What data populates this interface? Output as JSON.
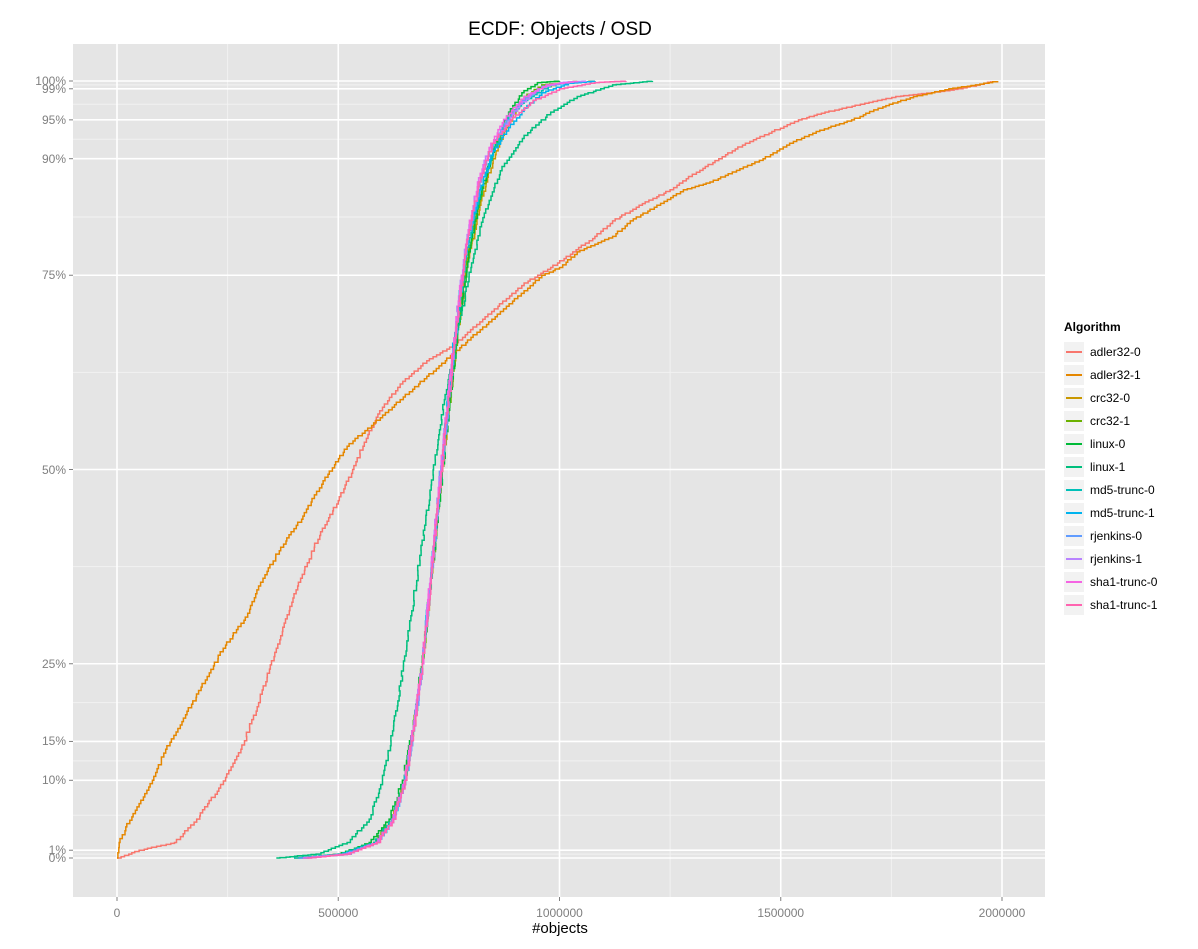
{
  "chart_data": {
    "type": "line",
    "subtype": "ecdf-step",
    "title": "ECDF: Objects / OSD",
    "xlabel": "#objects",
    "ylabel": "",
    "xlim": [
      -100000,
      2100000
    ],
    "ylim": [
      -0.05,
      1.05
    ],
    "x_ticks": [
      0,
      500000,
      1000000,
      1500000,
      2000000
    ],
    "x_tick_labels": [
      "0",
      "500000",
      "1000000",
      "1500000",
      "2000000"
    ],
    "y_ticks": [
      0,
      0.01,
      0.1,
      0.15,
      0.25,
      0.5,
      0.75,
      0.9,
      0.95,
      0.99,
      1.0
    ],
    "y_tick_labels": [
      "0%",
      "1%",
      "10%",
      "15%",
      "25%",
      "50%",
      "75%",
      "90%",
      "95%",
      "99%",
      "100%"
    ],
    "grid": true,
    "legend_title": "Algorithm",
    "legend_position": "right",
    "series": [
      {
        "name": "adler32-0",
        "color": "#F8766D",
        "points": [
          [
            0,
            0
          ],
          [
            50000,
            0.01
          ],
          [
            130000,
            0.02
          ],
          [
            180000,
            0.05
          ],
          [
            230000,
            0.09
          ],
          [
            280000,
            0.14
          ],
          [
            320000,
            0.2
          ],
          [
            360000,
            0.27
          ],
          [
            400000,
            0.34
          ],
          [
            430000,
            0.38
          ],
          [
            460000,
            0.42
          ],
          [
            500000,
            0.46
          ],
          [
            540000,
            0.51
          ],
          [
            570000,
            0.55
          ],
          [
            600000,
            0.58
          ],
          [
            640000,
            0.61
          ],
          [
            700000,
            0.64
          ],
          [
            760000,
            0.66
          ],
          [
            820000,
            0.69
          ],
          [
            880000,
            0.72
          ],
          [
            920000,
            0.74
          ],
          [
            980000,
            0.76
          ],
          [
            1030000,
            0.78
          ],
          [
            1080000,
            0.8
          ],
          [
            1120000,
            0.82
          ],
          [
            1180000,
            0.84
          ],
          [
            1250000,
            0.86
          ],
          [
            1300000,
            0.88
          ],
          [
            1360000,
            0.9
          ],
          [
            1420000,
            0.92
          ],
          [
            1480000,
            0.935
          ],
          [
            1540000,
            0.95
          ],
          [
            1600000,
            0.96
          ],
          [
            1680000,
            0.97
          ],
          [
            1760000,
            0.98
          ],
          [
            1840000,
            0.985
          ],
          [
            1900000,
            0.99
          ],
          [
            1960000,
            0.997
          ],
          [
            1975000,
            1.0
          ]
        ]
      },
      {
        "name": "adler32-1",
        "color": "#E58700",
        "points": [
          [
            0,
            0
          ],
          [
            5000,
            0.02
          ],
          [
            20000,
            0.04
          ],
          [
            50000,
            0.07
          ],
          [
            80000,
            0.1
          ],
          [
            110000,
            0.14
          ],
          [
            150000,
            0.18
          ],
          [
            190000,
            0.22
          ],
          [
            240000,
            0.27
          ],
          [
            290000,
            0.31
          ],
          [
            330000,
            0.36
          ],
          [
            370000,
            0.4
          ],
          [
            420000,
            0.44
          ],
          [
            470000,
            0.49
          ],
          [
            520000,
            0.53
          ],
          [
            580000,
            0.56
          ],
          [
            640000,
            0.59
          ],
          [
            700000,
            0.62
          ],
          [
            760000,
            0.65
          ],
          [
            800000,
            0.67
          ],
          [
            840000,
            0.69
          ],
          [
            880000,
            0.71
          ],
          [
            920000,
            0.73
          ],
          [
            960000,
            0.75
          ],
          [
            1000000,
            0.76
          ],
          [
            1040000,
            0.78
          ],
          [
            1080000,
            0.79
          ],
          [
            1120000,
            0.8
          ],
          [
            1160000,
            0.82
          ],
          [
            1220000,
            0.84
          ],
          [
            1280000,
            0.86
          ],
          [
            1340000,
            0.87
          ],
          [
            1400000,
            0.885
          ],
          [
            1460000,
            0.9
          ],
          [
            1520000,
            0.92
          ],
          [
            1580000,
            0.935
          ],
          [
            1660000,
            0.95
          ],
          [
            1720000,
            0.965
          ],
          [
            1800000,
            0.98
          ],
          [
            1880000,
            0.99
          ],
          [
            1940000,
            0.995
          ],
          [
            1990000,
            1.0
          ]
        ]
      },
      {
        "name": "crc32-0",
        "color": "#C99800",
        "points": [
          [
            400000,
            0
          ],
          [
            500000,
            0.005
          ],
          [
            580000,
            0.02
          ],
          [
            620000,
            0.05
          ],
          [
            650000,
            0.1
          ],
          [
            670000,
            0.17
          ],
          [
            690000,
            0.25
          ],
          [
            710000,
            0.36
          ],
          [
            730000,
            0.47
          ],
          [
            750000,
            0.58
          ],
          [
            770000,
            0.68
          ],
          [
            790000,
            0.76
          ],
          [
            820000,
            0.84
          ],
          [
            850000,
            0.9
          ],
          [
            880000,
            0.94
          ],
          [
            910000,
            0.97
          ],
          [
            950000,
            0.99
          ],
          [
            1000000,
            0.997
          ],
          [
            1080000,
            1.0
          ]
        ]
      },
      {
        "name": "crc32-1",
        "color": "#6BB100",
        "points": [
          [
            420000,
            0
          ],
          [
            510000,
            0.005
          ],
          [
            580000,
            0.02
          ],
          [
            620000,
            0.05
          ],
          [
            650000,
            0.1
          ],
          [
            670000,
            0.17
          ],
          [
            690000,
            0.25
          ],
          [
            710000,
            0.36
          ],
          [
            730000,
            0.47
          ],
          [
            750000,
            0.58
          ],
          [
            770000,
            0.68
          ],
          [
            790000,
            0.77
          ],
          [
            820000,
            0.85
          ],
          [
            850000,
            0.91
          ],
          [
            880000,
            0.95
          ],
          [
            920000,
            0.98
          ],
          [
            960000,
            0.995
          ],
          [
            1040000,
            1.0
          ]
        ]
      },
      {
        "name": "linux-0",
        "color": "#00BA38",
        "points": [
          [
            410000,
            0
          ],
          [
            500000,
            0.005
          ],
          [
            570000,
            0.02
          ],
          [
            615000,
            0.05
          ],
          [
            645000,
            0.1
          ],
          [
            670000,
            0.17
          ],
          [
            690000,
            0.26
          ],
          [
            712000,
            0.37
          ],
          [
            732000,
            0.48
          ],
          [
            752000,
            0.59
          ],
          [
            772000,
            0.69
          ],
          [
            795000,
            0.78
          ],
          [
            825000,
            0.86
          ],
          [
            855000,
            0.92
          ],
          [
            885000,
            0.96
          ],
          [
            915000,
            0.985
          ],
          [
            950000,
            0.998
          ],
          [
            1000000,
            1.0
          ]
        ]
      },
      {
        "name": "linux-1",
        "color": "#00BF7D",
        "points": [
          [
            360000,
            0
          ],
          [
            450000,
            0.005
          ],
          [
            520000,
            0.02
          ],
          [
            570000,
            0.05
          ],
          [
            600000,
            0.1
          ],
          [
            625000,
            0.17
          ],
          [
            650000,
            0.26
          ],
          [
            680000,
            0.37
          ],
          [
            710000,
            0.48
          ],
          [
            740000,
            0.59
          ],
          [
            770000,
            0.68
          ],
          [
            800000,
            0.76
          ],
          [
            830000,
            0.83
          ],
          [
            870000,
            0.89
          ],
          [
            920000,
            0.93
          ],
          [
            980000,
            0.96
          ],
          [
            1040000,
            0.98
          ],
          [
            1120000,
            0.995
          ],
          [
            1210000,
            1.0
          ]
        ]
      },
      {
        "name": "md5-trunc-0",
        "color": "#00C0B8",
        "points": [
          [
            400000,
            0
          ],
          [
            500000,
            0.005
          ],
          [
            580000,
            0.02
          ],
          [
            620000,
            0.05
          ],
          [
            650000,
            0.1
          ],
          [
            670000,
            0.17
          ],
          [
            690000,
            0.25
          ],
          [
            710000,
            0.36
          ],
          [
            728000,
            0.47
          ],
          [
            748000,
            0.58
          ],
          [
            768000,
            0.69
          ],
          [
            790000,
            0.78
          ],
          [
            820000,
            0.86
          ],
          [
            850000,
            0.91
          ],
          [
            880000,
            0.95
          ],
          [
            920000,
            0.975
          ],
          [
            980000,
            0.995
          ],
          [
            1060000,
            1.0
          ]
        ]
      },
      {
        "name": "md5-trunc-1",
        "color": "#00B4EF",
        "points": [
          [
            420000,
            0
          ],
          [
            520000,
            0.005
          ],
          [
            585000,
            0.02
          ],
          [
            625000,
            0.05
          ],
          [
            652000,
            0.1
          ],
          [
            672000,
            0.17
          ],
          [
            690000,
            0.25
          ],
          [
            708000,
            0.36
          ],
          [
            726000,
            0.47
          ],
          [
            746000,
            0.58
          ],
          [
            766000,
            0.69
          ],
          [
            790000,
            0.79
          ],
          [
            820000,
            0.86
          ],
          [
            850000,
            0.91
          ],
          [
            885000,
            0.94
          ],
          [
            920000,
            0.965
          ],
          [
            960000,
            0.985
          ],
          [
            1020000,
            0.997
          ],
          [
            1080000,
            1.0
          ]
        ]
      },
      {
        "name": "rjenkins-0",
        "color": "#619CFF",
        "points": [
          [
            410000,
            0
          ],
          [
            510000,
            0.005
          ],
          [
            585000,
            0.02
          ],
          [
            625000,
            0.05
          ],
          [
            652000,
            0.1
          ],
          [
            672000,
            0.17
          ],
          [
            690000,
            0.25
          ],
          [
            710000,
            0.36
          ],
          [
            728000,
            0.47
          ],
          [
            748000,
            0.58
          ],
          [
            768000,
            0.69
          ],
          [
            790000,
            0.79
          ],
          [
            820000,
            0.87
          ],
          [
            850000,
            0.92
          ],
          [
            880000,
            0.95
          ],
          [
            915000,
            0.975
          ],
          [
            960000,
            0.993
          ],
          [
            1040000,
            1.0
          ]
        ]
      },
      {
        "name": "rjenkins-1",
        "color": "#B983FF",
        "points": [
          [
            430000,
            0
          ],
          [
            520000,
            0.005
          ],
          [
            585000,
            0.02
          ],
          [
            625000,
            0.05
          ],
          [
            650000,
            0.1
          ],
          [
            670000,
            0.17
          ],
          [
            690000,
            0.25
          ],
          [
            708000,
            0.36
          ],
          [
            726000,
            0.47
          ],
          [
            746000,
            0.58
          ],
          [
            766000,
            0.69
          ],
          [
            788000,
            0.79
          ],
          [
            815000,
            0.87
          ],
          [
            845000,
            0.92
          ],
          [
            875000,
            0.94
          ],
          [
            910000,
            0.97
          ],
          [
            950000,
            0.99
          ],
          [
            1000000,
            0.998
          ],
          [
            1060000,
            1.0
          ]
        ]
      },
      {
        "name": "sha1-trunc-0",
        "color": "#F564E3",
        "points": [
          [
            420000,
            0
          ],
          [
            515000,
            0.005
          ],
          [
            585000,
            0.02
          ],
          [
            622000,
            0.05
          ],
          [
            650000,
            0.1
          ],
          [
            670000,
            0.17
          ],
          [
            690000,
            0.25
          ],
          [
            708000,
            0.36
          ],
          [
            726000,
            0.47
          ],
          [
            746000,
            0.58
          ],
          [
            766000,
            0.69
          ],
          [
            788000,
            0.79
          ],
          [
            815000,
            0.87
          ],
          [
            845000,
            0.92
          ],
          [
            880000,
            0.955
          ],
          [
            920000,
            0.98
          ],
          [
            970000,
            0.995
          ],
          [
            1040000,
            1.0
          ]
        ]
      },
      {
        "name": "sha1-trunc-1",
        "color": "#FF64B0",
        "points": [
          [
            430000,
            0
          ],
          [
            520000,
            0.005
          ],
          [
            588000,
            0.02
          ],
          [
            625000,
            0.05
          ],
          [
            652000,
            0.1
          ],
          [
            672000,
            0.17
          ],
          [
            690000,
            0.25
          ],
          [
            710000,
            0.36
          ],
          [
            728000,
            0.47
          ],
          [
            748000,
            0.58
          ],
          [
            768000,
            0.69
          ],
          [
            790000,
            0.79
          ],
          [
            818000,
            0.87
          ],
          [
            848000,
            0.92
          ],
          [
            890000,
            0.95
          ],
          [
            940000,
            0.975
          ],
          [
            1000000,
            0.99
          ],
          [
            1080000,
            0.998
          ],
          [
            1150000,
            1.0
          ]
        ]
      }
    ]
  },
  "plot": {
    "panel_background": "#E5E5E5",
    "grid_major_color": "#FFFFFF",
    "grid_minor_color": "#F2F2F2"
  }
}
